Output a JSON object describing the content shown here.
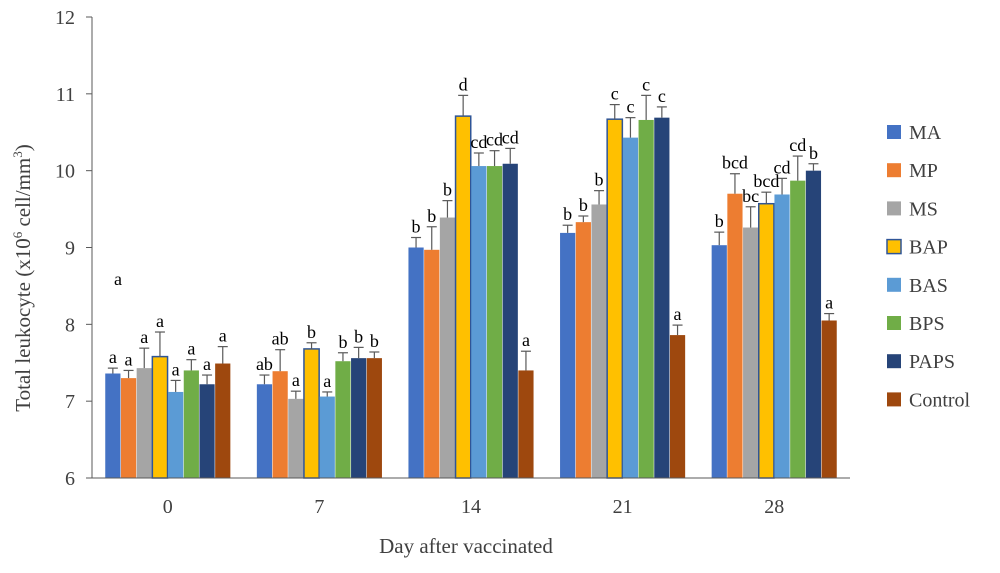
{
  "chart_data": {
    "type": "bar",
    "title": "",
    "xlabel": "Day after vaccinated",
    "ylabel_main": "Total leukocyte (x10",
    "ylabel_sup1": "6",
    "ylabel_mid": " cell/mm",
    "ylabel_sup2": "3",
    "ylabel_end": ")",
    "ylim": [
      6,
      12
    ],
    "yticks": [
      "6",
      "7",
      "8",
      "9",
      "10",
      "11",
      "12"
    ],
    "categories": [
      "0",
      "7",
      "14",
      "21",
      "28"
    ],
    "grid": false,
    "legend_position": "right",
    "stray_label": "a",
    "series": [
      {
        "name": "MA",
        "color": "#4472C4",
        "values": [
          7.36,
          7.22,
          9.0,
          9.19,
          9.03
        ],
        "errors": [
          0.07,
          0.12,
          0.13,
          0.1,
          0.17
        ],
        "letters": [
          "a",
          "ab",
          "b",
          "b",
          "b"
        ]
      },
      {
        "name": "MP",
        "color": "#ED7D31",
        "values": [
          7.3,
          7.39,
          8.97,
          9.33,
          9.7
        ],
        "errors": [
          0.1,
          0.28,
          0.3,
          0.08,
          0.26
        ],
        "letters": [
          "a",
          "ab",
          "b",
          "b",
          "bcd"
        ]
      },
      {
        "name": "MS",
        "color": "#A5A5A5",
        "values": [
          7.43,
          7.03,
          9.39,
          9.56,
          9.26
        ],
        "errors": [
          0.26,
          0.1,
          0.22,
          0.18,
          0.27
        ],
        "letters": [
          "a",
          "a",
          "b",
          "b",
          "bc"
        ]
      },
      {
        "name": "BAP",
        "color": "#FFC000",
        "values": [
          7.58,
          7.68,
          10.71,
          10.67,
          9.57
        ],
        "errors": [
          0.32,
          0.08,
          0.27,
          0.19,
          0.15
        ],
        "letters": [
          "a",
          "b",
          "d",
          "c",
          "bcd"
        ]
      },
      {
        "name": "BAS",
        "color": "#5B9BD5",
        "values": [
          7.12,
          7.06,
          10.06,
          10.43,
          9.69
        ],
        "errors": [
          0.15,
          0.06,
          0.17,
          0.26,
          0.21
        ],
        "letters": [
          "a",
          "a",
          "cd",
          "c",
          "cd"
        ]
      },
      {
        "name": "BPS",
        "color": "#70AD47",
        "values": [
          7.4,
          7.52,
          10.06,
          10.66,
          9.87
        ],
        "errors": [
          0.14,
          0.11,
          0.2,
          0.32,
          0.32
        ],
        "letters": [
          "a",
          "b",
          "cd",
          "c",
          "cd"
        ]
      },
      {
        "name": "PAPS",
        "color": "#264478",
        "values": [
          7.22,
          7.56,
          10.09,
          10.69,
          10.0
        ],
        "errors": [
          0.12,
          0.14,
          0.2,
          0.14,
          0.09
        ],
        "letters": [
          "a",
          "b",
          "cd",
          "c",
          "b"
        ]
      },
      {
        "name": "Control",
        "color": "#9E480E",
        "values": [
          7.49,
          7.56,
          7.4,
          7.86,
          8.05
        ],
        "errors": [
          0.22,
          0.08,
          0.25,
          0.13,
          0.09
        ],
        "letters": [
          "a",
          "b",
          "a",
          "a",
          "a"
        ]
      }
    ]
  }
}
